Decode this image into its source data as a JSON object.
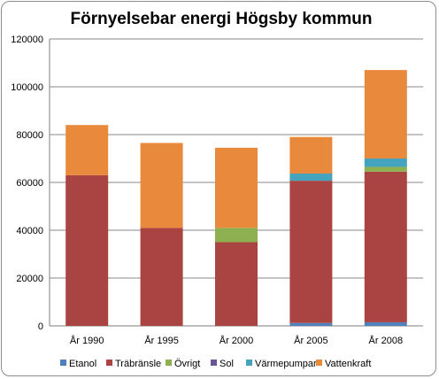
{
  "chart_data": {
    "type": "bar",
    "stacked": true,
    "title": "Förnyelsebar energi Högsby kommun",
    "xlabel": "",
    "ylabel": "",
    "categories": [
      "År 1990",
      "År 1995",
      "År 2000",
      "År 2005",
      "År 2008"
    ],
    "ylim": [
      0,
      120000
    ],
    "yticks": [
      0,
      20000,
      40000,
      60000,
      80000,
      100000,
      120000
    ],
    "grid": true,
    "legend": "bottom",
    "series": [
      {
        "name": "Etanol",
        "color": "#4f81bd",
        "values": [
          0,
          0,
          0,
          1200,
          1500
        ]
      },
      {
        "name": "Träbränsle",
        "color": "#a94442",
        "values": [
          63000,
          41000,
          35000,
          59500,
          63000
        ]
      },
      {
        "name": "Övrigt",
        "color": "#8fb050",
        "values": [
          0,
          0,
          6000,
          0,
          2000
        ]
      },
      {
        "name": "Sol",
        "color": "#6b559a",
        "values": [
          0,
          0,
          0,
          0,
          0
        ]
      },
      {
        "name": "Värmepumpar",
        "color": "#45a3bd",
        "values": [
          0,
          0,
          0,
          3000,
          3500
        ]
      },
      {
        "name": "Vattenkraft",
        "color": "#e8893c",
        "values": [
          21000,
          35500,
          33500,
          15300,
          37000
        ]
      }
    ]
  }
}
